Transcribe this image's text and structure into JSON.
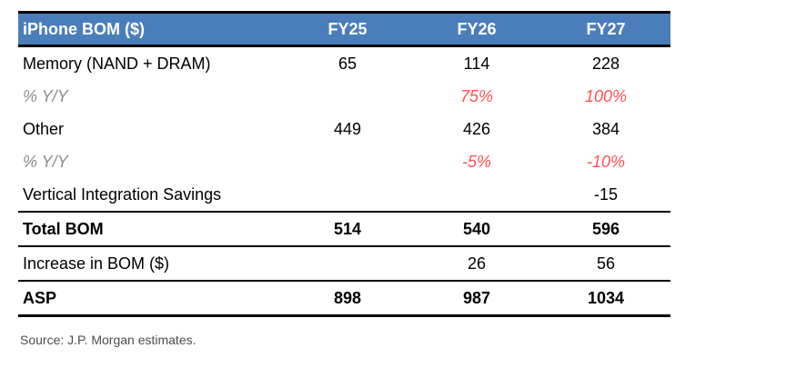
{
  "chart_data": {
    "type": "table",
    "title": "iPhone BOM ($)",
    "columns": [
      "FY25",
      "FY26",
      "FY27"
    ],
    "rows": [
      {
        "label": "Memory (NAND + DRAM)",
        "values": [
          "65",
          "114",
          "228"
        ]
      },
      {
        "label": "% Y/Y",
        "values": [
          "",
          "75%",
          "100%"
        ]
      },
      {
        "label": "Other",
        "values": [
          "449",
          "426",
          "384"
        ]
      },
      {
        "label": "% Y/Y",
        "values": [
          "",
          "-5%",
          "-10%"
        ]
      },
      {
        "label": "Vertical Integration Savings",
        "values": [
          "",
          "",
          "-15"
        ]
      },
      {
        "label": "Total BOM",
        "values": [
          "514",
          "540",
          "596"
        ]
      },
      {
        "label": "Increase in BOM ($)",
        "values": [
          "",
          "26",
          "56"
        ]
      },
      {
        "label": "ASP",
        "values": [
          "898",
          "987",
          "1034"
        ]
      }
    ],
    "source": "Source: J.P. Morgan estimates.",
    "layout": {
      "legend": "none",
      "grid": "section rules only",
      "value_alignment": "center",
      "label_alignment": "left"
    }
  },
  "colors": {
    "header_bg": "#4A7EBB",
    "header_text": "#FFFFFF",
    "pct_label_gray": "#8C8C8C",
    "pct_value_red": "#FF5050",
    "rule_black": "#000000",
    "source_gray": "#4D4D4D"
  }
}
